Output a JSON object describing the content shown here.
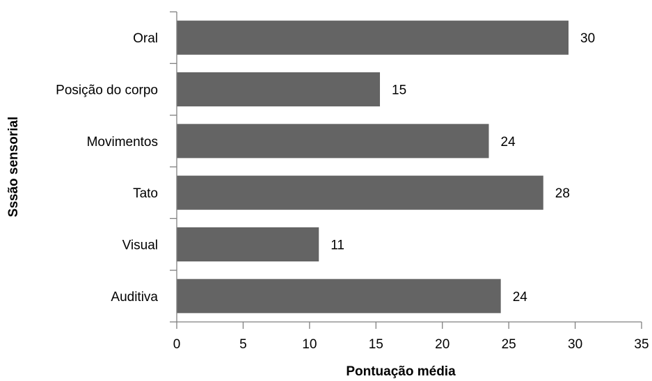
{
  "chart_data": {
    "type": "bar",
    "orientation": "horizontal",
    "categories": [
      "Oral",
      "Posição do corpo",
      "Movimentos ",
      "Tato",
      "Visual",
      "Auditiva"
    ],
    "values": [
      29.5,
      15.3,
      23.5,
      27.6,
      10.7,
      24.4
    ],
    "data_labels": [
      "30",
      "15",
      "24",
      "28",
      "11",
      "24"
    ],
    "xlabel": "Pontuação média",
    "ylabel": "Sssão sensorial",
    "xlim": [
      0,
      35
    ],
    "xticks": [
      0,
      5,
      10,
      15,
      20,
      25,
      30,
      35
    ],
    "grid": false,
    "bar_color": "#646464"
  }
}
